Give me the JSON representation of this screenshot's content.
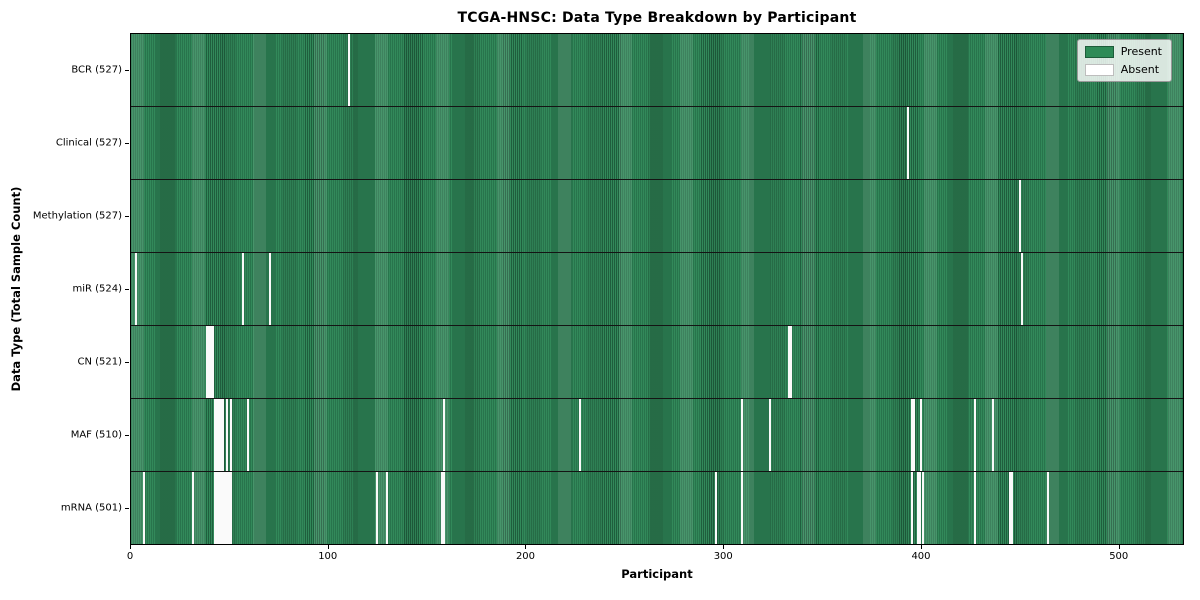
{
  "figure": {
    "title": "TCGA-HNSC: Data Type Breakdown by Participant",
    "xlabel": "Participant",
    "ylabel": "Data Type (Total Sample Count)"
  },
  "legend": {
    "items": [
      {
        "label": "Present",
        "color": "#2e8b57",
        "border": "#1d5c3a"
      },
      {
        "label": "Absent",
        "color": "#ffffff",
        "border": "#bdbdbd"
      }
    ]
  },
  "chart_data": {
    "type": "heatmap",
    "title": "TCGA-HNSC: Data Type Breakdown by Participant",
    "xlabel": "Participant",
    "ylabel": "Data Type (Total Sample Count)",
    "legend_position": "upper right",
    "legend_entries": [
      "Present",
      "Absent"
    ],
    "x_ticks": [
      0,
      100,
      200,
      300,
      400,
      500
    ],
    "x_max": 533,
    "grid": false,
    "colors": {
      "present": "#2e8b57",
      "present_edge": "#1f5e3d",
      "absent": "#ffffff"
    },
    "rows": [
      {
        "data_type": "BCR",
        "label": "BCR (527)",
        "total_samples": 527,
        "absent_participants": [
          110
        ]
      },
      {
        "data_type": "Clinical",
        "label": "Clinical (527)",
        "total_samples": 527,
        "absent_participants": [
          393
        ]
      },
      {
        "data_type": "Methylation",
        "label": "Methylation (527)",
        "total_samples": 527,
        "absent_participants": [
          450
        ]
      },
      {
        "data_type": "miR",
        "label": "miR (524)",
        "total_samples": 524,
        "absent_participants": [
          2,
          56,
          70,
          451
        ]
      },
      {
        "data_type": "CN",
        "label": "CN (521)",
        "total_samples": 521,
        "absent_participants": [
          38,
          39,
          40,
          41,
          333,
          334
        ]
      },
      {
        "data_type": "MAF",
        "label": "MAF (510)",
        "total_samples": 510,
        "absent_participants": [
          42,
          43,
          44,
          45,
          46,
          48,
          50,
          59,
          158,
          227,
          309,
          323,
          395,
          396,
          400,
          427,
          436
        ]
      },
      {
        "data_type": "mRNA",
        "label": "mRNA (501)",
        "total_samples": 501,
        "absent_participants": [
          6,
          31,
          42,
          43,
          44,
          45,
          46,
          47,
          48,
          49,
          50,
          124,
          129,
          157,
          158,
          296,
          309,
          395,
          398,
          399,
          401,
          427,
          445,
          446,
          464
        ]
      }
    ]
  }
}
